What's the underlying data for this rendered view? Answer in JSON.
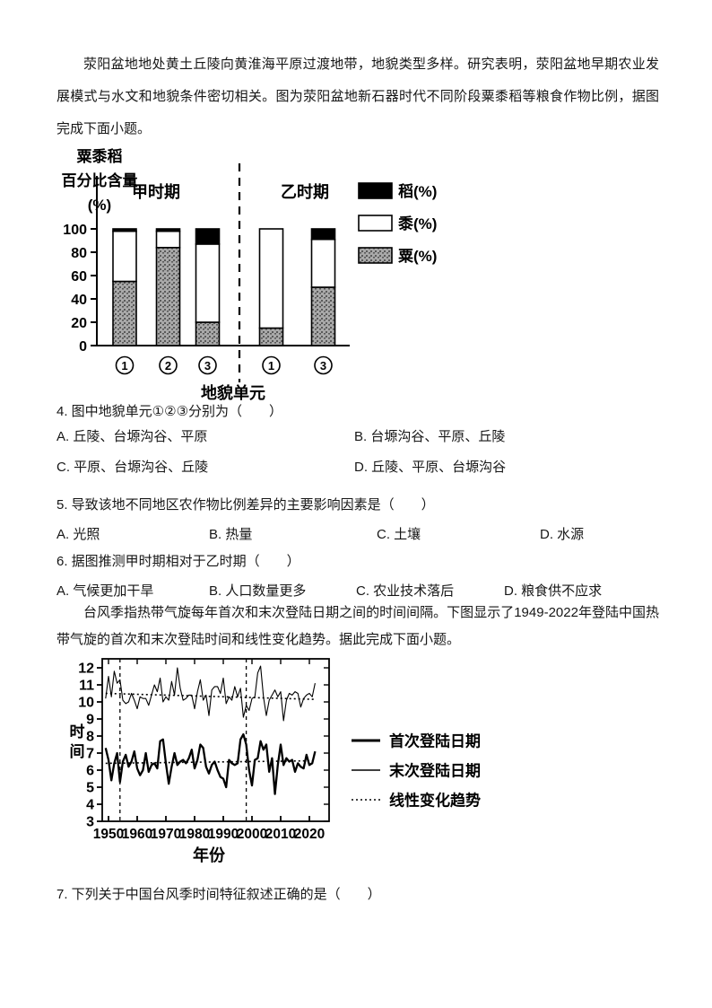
{
  "page": {
    "intro1": "荥阳盆地地处黄土丘陵向黄淮海平原过渡地带，地貌类型多样。研究表明，荥阳盆地早期农业发展模式与水文和地貌条件密切相关。图为荥阳盆地新石器时代不同阶段粟黍稻等粮食作物比例，据图完成下面小题。",
    "intro2": "台风季指热带气旋每年首次和末次登陆日期之间的时间间隔。下图显示了1949-2022年登陆中国热带气旋的首次和末次登陆时间和线性变化趋势。据此完成下面小题。",
    "q4": {
      "text": "4. 图中地貌单元①②③分别为（　　）",
      "options": [
        "A. 丘陵、台塬沟谷、平原",
        "B. 台塬沟谷、平原、丘陵",
        "C. 平原、台塬沟谷、丘陵",
        "D. 丘陵、平原、台塬沟谷"
      ]
    },
    "q5": {
      "text": "5. 导致该地不同地区农作物比例差异的主要影响因素是（　　）",
      "options": [
        "A. 光照",
        "B. 热量",
        "C. 土壤",
        "D. 水源"
      ]
    },
    "q6": {
      "text": "6. 据图推测甲时期相对于乙时期（　　）",
      "options": [
        "A. 气候更加干旱",
        "B. 人口数量更多",
        "C. 农业技术落后",
        "D. 粮食供不应求"
      ]
    },
    "q7": {
      "text": "7. 下列关于中国台风季时间特征叙述正确的是（　　）"
    }
  },
  "chart_data": [
    {
      "type": "bar",
      "stacked": true,
      "title": "粟黍稻百分比含量(%)",
      "title_lines": [
        "粟黍稻",
        "百分比含量",
        "(%)"
      ],
      "xlabel": "地貌单元",
      "ylim": [
        0,
        100
      ],
      "yticks": [
        0,
        20,
        40,
        60,
        80,
        100
      ],
      "group_labels": [
        "甲时期",
        "乙时期"
      ],
      "categories": [
        "①",
        "②",
        "③",
        "①",
        "③"
      ],
      "series": [
        {
          "name": "粟(%)",
          "fill": "hatch",
          "values": [
            55,
            84,
            20,
            15,
            50
          ]
        },
        {
          "name": "黍(%)",
          "fill": "white",
          "values": [
            43,
            14,
            67,
            85,
            41
          ]
        },
        {
          "name": "稻(%)",
          "fill": "black",
          "values": [
            2,
            2,
            13,
            0,
            9
          ]
        }
      ],
      "legend_order": [
        "稻(%)",
        "黍(%)",
        "粟(%)"
      ],
      "legend_position": "right",
      "colors": {
        "black": "#000000",
        "white": "#ffffff",
        "hatch_base": "#a9a9a9",
        "hatch_dot": "#5a5a5a"
      }
    },
    {
      "type": "line",
      "ylabel": "时间",
      "xlabel": "年份",
      "ylim": [
        3,
        12
      ],
      "yticks": [
        3,
        4,
        5,
        6,
        7,
        8,
        9,
        10,
        11,
        12
      ],
      "xticks": [
        1950,
        1960,
        1970,
        1980,
        1990,
        2000,
        2010,
        2020
      ],
      "x_range": [
        1949,
        2022
      ],
      "vlines": [
        1954,
        1998
      ],
      "series": [
        {
          "name": "首次登陆日期",
          "style": "thick",
          "values": [
            7.3,
            6.6,
            5.4,
            6.4,
            7.0,
            5.3,
            6.5,
            6.9,
            6.2,
            6.5,
            7.1,
            6.1,
            5.7,
            6.0,
            7.0,
            5.9,
            6.3,
            6.4,
            6.1,
            7.7,
            7.8,
            6.4,
            5.2,
            6.2,
            7.0,
            6.3,
            6.5,
            6.6,
            6.4,
            6.7,
            7.2,
            6.1,
            6.6,
            7.5,
            7.3,
            6.2,
            5.8,
            6.3,
            6.5,
            6.0,
            5.6,
            5.5,
            5.0,
            6.6,
            6.4,
            6.3,
            6.4,
            7.8,
            8.1,
            7.5,
            6.0,
            5.1,
            6.6,
            6.7,
            7.7,
            7.2,
            7.5,
            5.9,
            6.7,
            4.6,
            6.3,
            7.5,
            6.3,
            6.7,
            6.5,
            6.6,
            5.9,
            6.4,
            6.2,
            6.1,
            6.9,
            6.3,
            6.4,
            7.1
          ]
        },
        {
          "name": "末次登陆日期",
          "style": "thin",
          "values": [
            10.2,
            11.5,
            10.3,
            11.8,
            11.1,
            11.3,
            10.1,
            9.9,
            10.0,
            10.5,
            10.1,
            9.6,
            10.3,
            10.2,
            10.2,
            9.8,
            10.4,
            11.0,
            10.6,
            11.4,
            10.0,
            10.3,
            10.1,
            11.2,
            10.4,
            12.0,
            10.8,
            10.1,
            10.2,
            10.4,
            10.4,
            9.6,
            10.6,
            11.3,
            10.1,
            10.4,
            9.2,
            10.7,
            10.9,
            10.9,
            10.5,
            11.4,
            9.9,
            10.3,
            10.1,
            10.9,
            10.3,
            10.8,
            9.1,
            9.8,
            9.5,
            10.2,
            10.3,
            11.7,
            12.1,
            10.3,
            9.2,
            10.1,
            10.4,
            10.7,
            10.3,
            10.6,
            8.9,
            10.1,
            10.5,
            10.4,
            10.6,
            10.5,
            9.7,
            10.2,
            10.4,
            10.5,
            10.3,
            11.1
          ]
        }
      ],
      "trends": [
        {
          "applies_to": "首次登陆日期",
          "from": 6.4,
          "to": 6.55
        },
        {
          "applies_to": "末次登陆日期",
          "from": 10.5,
          "to": 10.15
        }
      ],
      "legend": [
        {
          "label": "首次登陆日期",
          "style": "thick"
        },
        {
          "label": "末次登陆日期",
          "style": "thin"
        },
        {
          "label": "线性变化趋势",
          "style": "dotted"
        }
      ]
    }
  ]
}
